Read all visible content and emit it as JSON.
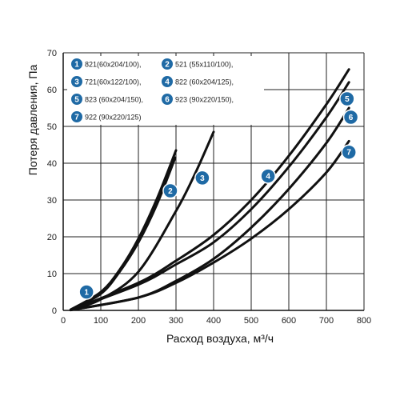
{
  "chart_data": {
    "type": "line",
    "xlabel": "Расход воздуха, м³/ч",
    "ylabel": "Потеря давления, Па",
    "xlim": [
      0,
      800
    ],
    "ylim": [
      0,
      70
    ],
    "x_ticks": [
      "0",
      "100",
      "200",
      "300",
      "400",
      "500",
      "600",
      "700",
      "800"
    ],
    "y_ticks": [
      "0",
      "10",
      "20",
      "30",
      "40",
      "50",
      "60",
      "70"
    ],
    "grid": true,
    "legend_position": "top-left",
    "badge_color": "#1f6aa5",
    "line_color": "#111111",
    "series": [
      {
        "name": "821(60x204/100),",
        "badge": "1",
        "points": [
          [
            20,
            0.2
          ],
          [
            100,
            4.5
          ],
          [
            150,
            10.5
          ],
          [
            200,
            18.5
          ],
          [
            250,
            29
          ],
          [
            298,
            41.5
          ]
        ]
      },
      {
        "name": "521 (55x110/100),",
        "badge": "2",
        "points": [
          [
            20,
            0.2
          ],
          [
            100,
            5
          ],
          [
            150,
            11
          ],
          [
            200,
            19.5
          ],
          [
            250,
            30.5
          ],
          [
            300,
            43.5
          ]
        ]
      },
      {
        "name": "721(60x122/100),",
        "badge": "3",
        "points": [
          [
            20,
            0.2
          ],
          [
            100,
            3
          ],
          [
            200,
            10.5
          ],
          [
            300,
            27
          ],
          [
            350,
            37
          ],
          [
            400,
            48.5
          ]
        ]
      },
      {
        "name": "822 (60x204/125),",
        "badge": "4",
        "points": [
          [
            20,
            0.1
          ],
          [
            200,
            7.5
          ],
          [
            300,
            13.5
          ],
          [
            400,
            20.5
          ],
          [
            500,
            30
          ],
          [
            600,
            42
          ],
          [
            700,
            56
          ],
          [
            760,
            65.5
          ]
        ]
      },
      {
        "name": "823 (60x204/150),",
        "badge": "5",
        "points": [
          [
            20,
            0.1
          ],
          [
            200,
            7
          ],
          [
            300,
            12.5
          ],
          [
            400,
            18.5
          ],
          [
            500,
            27.5
          ],
          [
            600,
            39
          ],
          [
            700,
            52.5
          ],
          [
            760,
            62
          ]
        ]
      },
      {
        "name": "923 (90x220/150),",
        "badge": "6",
        "points": [
          [
            20,
            0.1
          ],
          [
            200,
            3.5
          ],
          [
            300,
            8
          ],
          [
            400,
            14
          ],
          [
            500,
            22.5
          ],
          [
            600,
            33
          ],
          [
            700,
            45.5
          ],
          [
            760,
            55
          ]
        ]
      },
      {
        "name": "922 (90x220/125)",
        "badge": "7",
        "points": [
          [
            20,
            0.1
          ],
          [
            200,
            3.5
          ],
          [
            300,
            7.5
          ],
          [
            400,
            13
          ],
          [
            500,
            19.5
          ],
          [
            600,
            27.5
          ],
          [
            700,
            37.5
          ],
          [
            760,
            46
          ]
        ]
      }
    ],
    "badges": [
      {
        "label": "1",
        "x": 62,
        "y": 5
      },
      {
        "label": "2",
        "x": 285,
        "y": 32.5
      },
      {
        "label": "3",
        "x": 370,
        "y": 36
      },
      {
        "label": "4",
        "x": 545,
        "y": 36.5
      },
      {
        "label": "5",
        "x": 755,
        "y": 57.5
      },
      {
        "label": "6",
        "x": 765,
        "y": 52.5
      },
      {
        "label": "7",
        "x": 760,
        "y": 43
      }
    ]
  }
}
